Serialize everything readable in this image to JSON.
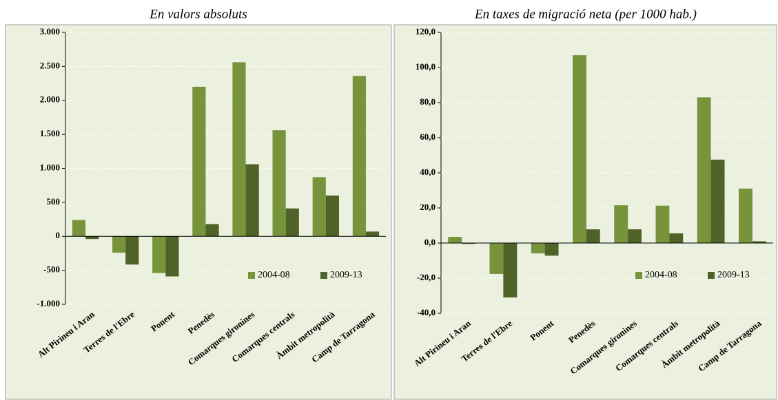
{
  "chart_data": [
    {
      "type": "bar",
      "title": "En valors absoluts",
      "categories": [
        "Alt Pirineu i Aran",
        "Terres de l'Ebre",
        "Ponent",
        "Penedès",
        "Comarques gironines",
        "Comarques centrals",
        "Àmbit metropolità",
        "Camp de Tarragona"
      ],
      "series": [
        {
          "name": "2004-08",
          "color": "#77933c",
          "values": [
            240,
            -240,
            -540,
            2200,
            2560,
            1560,
            870,
            2360
          ]
        },
        {
          "name": "2009-13",
          "color": "#4f6228",
          "values": [
            -40,
            -415,
            -590,
            180,
            1060,
            410,
            600,
            70
          ]
        }
      ],
      "ylim": [
        -1000,
        3000
      ],
      "yticks": [
        {
          "value": -1000,
          "label": "-1.000"
        },
        -500,
        0,
        500,
        {
          "value": 1000,
          "label": "1.000"
        },
        {
          "value": 1500,
          "label": "1.500"
        },
        {
          "value": 2000,
          "label": "2.000"
        },
        {
          "value": 2500,
          "label": "2.500"
        },
        {
          "value": 3000,
          "label": "3.000"
        }
      ],
      "grid": true,
      "legend": "lower right"
    },
    {
      "type": "bar",
      "title": "En taxes de migració neta (per 1000 hab.)",
      "categories": [
        "Alt Pirineu i Aran",
        "Terres de l'Ebre",
        "Ponent",
        "Penedès",
        "Comarques gironines",
        "Comarques centrals",
        "Àmbit metropolità",
        "Camp de Tarragona"
      ],
      "series": [
        {
          "name": "2004-08",
          "color": "#77933c",
          "values": [
            3.5,
            -17.6,
            -5.9,
            107,
            21.5,
            21.3,
            83,
            31
          ]
        },
        {
          "name": "2009-13",
          "color": "#4f6228",
          "values": [
            -0.5,
            -31,
            -7.2,
            7.8,
            7.8,
            5.5,
            47.5,
            1
          ]
        }
      ],
      "ylim": [
        -40,
        120
      ],
      "yticks": [
        {
          "value": -40,
          "label": "-40,0"
        },
        {
          "value": -20,
          "label": "-20,0"
        },
        {
          "value": 0,
          "label": "0,0"
        },
        {
          "value": 20,
          "label": "20,0"
        },
        {
          "value": 40,
          "label": "40,0"
        },
        {
          "value": 60,
          "label": "60,0"
        },
        {
          "value": 80,
          "label": "80,0"
        },
        {
          "value": 100,
          "label": "100,0"
        },
        {
          "value": 120,
          "label": "120,0"
        }
      ],
      "grid": true,
      "legend": "lower right"
    }
  ]
}
